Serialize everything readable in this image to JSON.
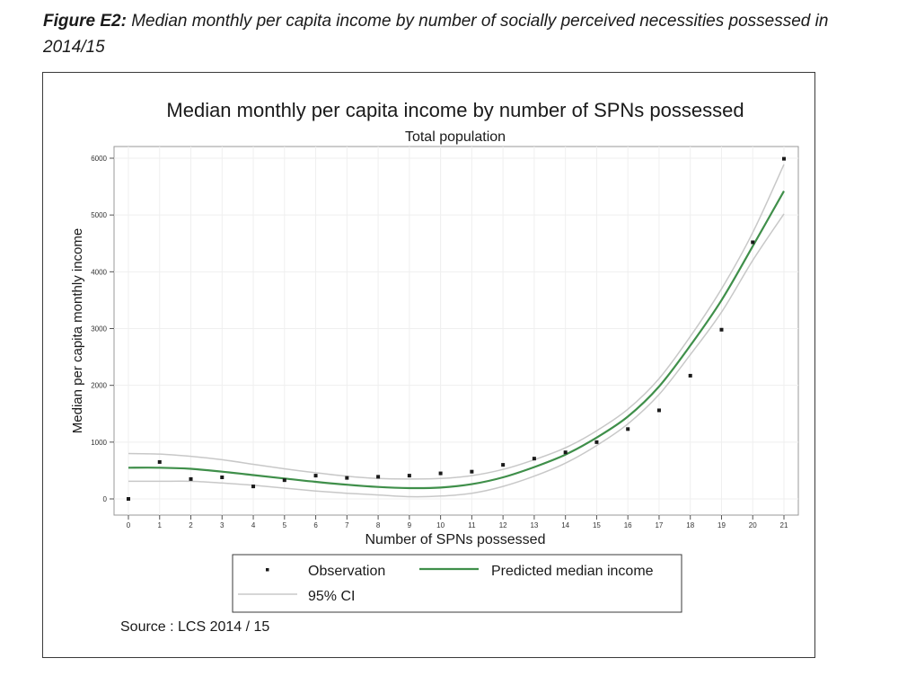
{
  "caption": {
    "label": "Figure E2:",
    "text": "Median monthly per capita income by number of socially perceived necessities possessed in 2014/15"
  },
  "source": "Source : LCS 2014 / 15",
  "chart_data": {
    "type": "scatter",
    "title": "Median monthly per capita income by number of SPNs possessed",
    "subtitle": "Total population",
    "xlabel": "Number of SPNs possessed",
    "ylabel": "Median per capita monthly income",
    "xlim": [
      0,
      21
    ],
    "ylim": [
      0,
      6000
    ],
    "x_ticks": [
      0,
      1,
      2,
      3,
      4,
      5,
      6,
      7,
      8,
      9,
      10,
      11,
      12,
      13,
      14,
      15,
      16,
      17,
      18,
      19,
      20,
      21
    ],
    "y_ticks": [
      0,
      1000,
      2000,
      3000,
      4000,
      5000,
      6000
    ],
    "grid": true,
    "legend_position": "bottom",
    "colors": {
      "predicted": "#3f8f4a",
      "ci": "#c8c8c8",
      "observation": "#1a1a1a"
    },
    "series": [
      {
        "name": "Observation",
        "style": "points",
        "x": [
          0,
          1,
          2,
          3,
          4,
          5,
          6,
          7,
          8,
          9,
          10,
          11,
          12,
          13,
          14,
          15,
          16,
          17,
          18,
          19,
          20,
          21
        ],
        "values": [
          0,
          650,
          350,
          380,
          220,
          330,
          410,
          370,
          390,
          410,
          450,
          480,
          600,
          710,
          820,
          1000,
          1230,
          1560,
          2170,
          2980,
          4520,
          5990
        ]
      },
      {
        "name": "Predicted median income",
        "style": "line",
        "x": [
          0,
          1,
          2,
          3,
          4,
          5,
          6,
          7,
          8,
          9,
          10,
          11,
          12,
          13,
          14,
          15,
          16,
          17,
          18,
          19,
          20,
          21
        ],
        "values": [
          550,
          550,
          530,
          480,
          420,
          360,
          300,
          250,
          210,
          190,
          200,
          260,
          380,
          560,
          780,
          1080,
          1450,
          1980,
          2700,
          3500,
          4450,
          5420
        ]
      },
      {
        "name": "95% CI",
        "style": "band",
        "x": [
          0,
          1,
          2,
          3,
          4,
          5,
          6,
          7,
          8,
          9,
          10,
          11,
          12,
          13,
          14,
          15,
          16,
          17,
          18,
          19,
          20,
          21
        ],
        "upper": [
          800,
          790,
          750,
          690,
          610,
          530,
          460,
          400,
          360,
          350,
          360,
          410,
          520,
          690,
          900,
          1200,
          1580,
          2120,
          2860,
          3700,
          4690,
          5890
        ],
        "lower": [
          310,
          310,
          310,
          280,
          240,
          190,
          140,
          100,
          70,
          40,
          50,
          100,
          220,
          400,
          630,
          940,
          1320,
          1840,
          2540,
          3290,
          4200,
          5020
        ]
      }
    ]
  }
}
